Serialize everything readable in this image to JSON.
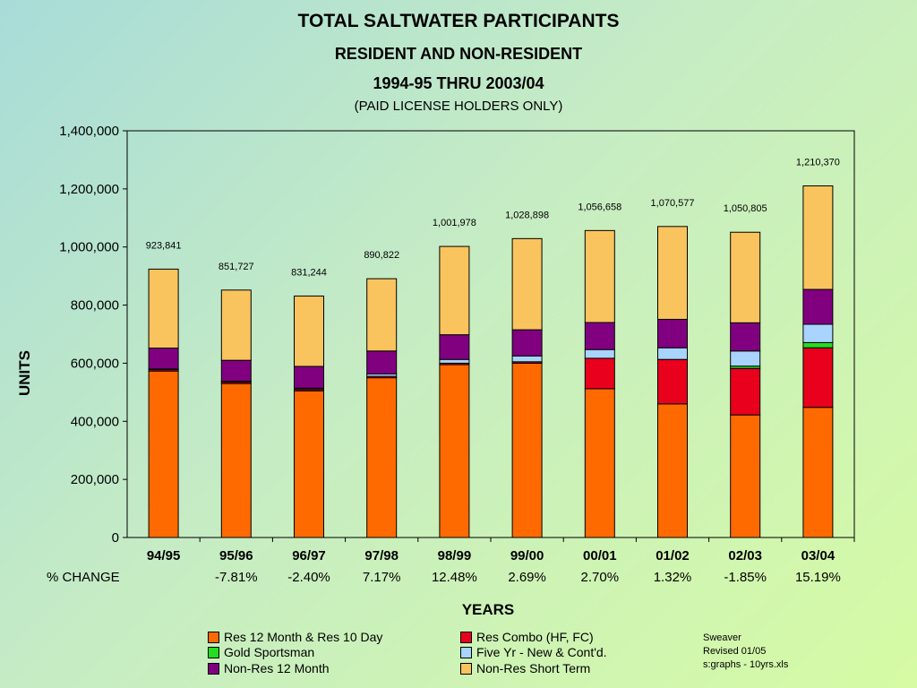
{
  "title": "TOTAL SALTWATER PARTICIPANTS",
  "subtitle": "RESIDENT AND NON-RESIDENT",
  "years_title": "1994-95 THRU 2003/04",
  "note": "(PAID LICENSE HOLDERS ONLY)",
  "credit": [
    "Sweaver",
    "Revised 01/05",
    "s:graphs - 10yrs.xls"
  ],
  "pct_change_label": "% CHANGE",
  "pct_change": [
    "",
    "-7.81%",
    "-2.40%",
    "7.17%",
    "12.48%",
    "2.69%",
    "2.70%",
    "1.32%",
    "-1.85%",
    "15.19%"
  ],
  "colors": {
    "res12": "#ff6a00",
    "resCombo": "#e8001c",
    "gold": "#22dd22",
    "fiveYr": "#a8d4ff",
    "nonRes12": "#800080",
    "nonResShort": "#f9c45e"
  },
  "chart_data": {
    "type": "bar",
    "stacked": true,
    "xlabel": "YEARS",
    "ylabel": "UNITS",
    "ylim": [
      0,
      1400000
    ],
    "yticks": [
      "0",
      "200,000",
      "400,000",
      "600,000",
      "800,000",
      "1,000,000",
      "1,200,000",
      "1,400,000"
    ],
    "categories": [
      "94/95",
      "95/96",
      "96/97",
      "97/98",
      "98/99",
      "99/00",
      "00/01",
      "01/02",
      "02/03",
      "03/04"
    ],
    "totals": [
      923841,
      851727,
      831244,
      890822,
      1001978,
      1028898,
      1056658,
      1070577,
      1050805,
      1210370
    ],
    "total_labels": [
      "923,841",
      "851,727",
      "831,244",
      "890,822",
      "1,001,978",
      "1,028,898",
      "1,056,658",
      "1,070,577",
      "1,050,805",
      "1,210,370"
    ],
    "legend_position": "bottom",
    "series": [
      {
        "name": "Res 12 Month & Res 10 Day",
        "color_key": "res12",
        "values": [
          573000,
          530000,
          505000,
          550000,
          595000,
          600000,
          512000,
          460000,
          422000,
          448000
        ]
      },
      {
        "name": "Res Combo (HF, FC)",
        "color_key": "resCombo",
        "values": [
          5000,
          5000,
          5000,
          5000,
          5000,
          5000,
          105000,
          153000,
          160000,
          205000
        ]
      },
      {
        "name": "Gold Sportsman",
        "color_key": "gold",
        "values": [
          0,
          0,
          0,
          0,
          0,
          0,
          0,
          0,
          8000,
          18000
        ]
      },
      {
        "name": "Five Yr - New & Cont'd.",
        "color_key": "fiveYr",
        "values": [
          2000,
          3000,
          4000,
          8000,
          13000,
          20000,
          30000,
          40000,
          52000,
          63000
        ]
      },
      {
        "name": "Non-Res 12 Month",
        "color_key": "nonRes12",
        "values": [
          72000,
          72000,
          75000,
          79000,
          85000,
          90000,
          93000,
          98000,
          97000,
          120000
        ]
      },
      {
        "name": "Non-Res Short Term",
        "color_key": "nonResShort",
        "values": [
          271841,
          241727,
          242244,
          248822,
          303978,
          313898,
          316658,
          319577,
          311805,
          356370
        ]
      }
    ]
  }
}
